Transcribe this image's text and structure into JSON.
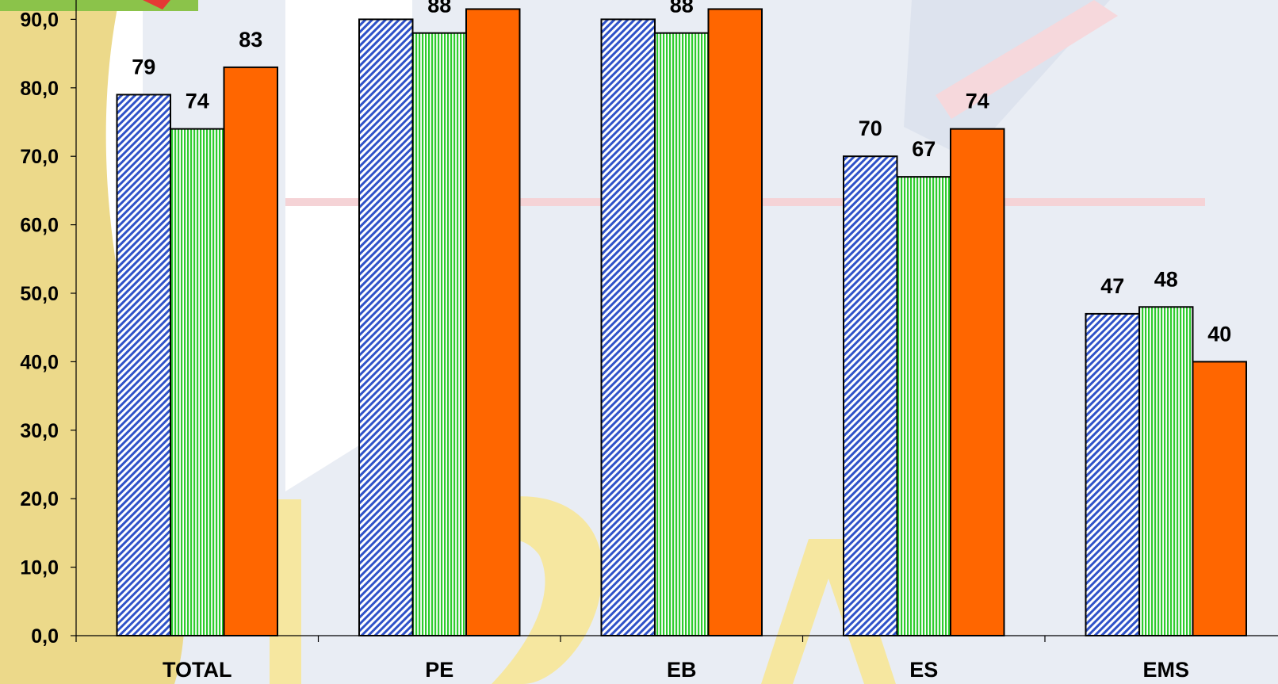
{
  "chart_data": {
    "type": "bar",
    "categories": [
      "TOTAL",
      "PE",
      "EB",
      "ES",
      "EMS"
    ],
    "series": [
      {
        "color": "#2f52c8",
        "pattern": "diagonal",
        "values": [
          79,
          90,
          90,
          70,
          47
        ]
      },
      {
        "color": "#2ecc2e",
        "pattern": "vertical",
        "values": [
          74,
          88,
          88,
          67,
          48
        ]
      },
      {
        "color": "#ff6600",
        "pattern": "solid",
        "values": [
          83,
          91.5,
          91.5,
          74,
          40
        ]
      }
    ],
    "ylim": [
      0,
      92.9
    ],
    "yticks": [
      {
        "value": 0,
        "label": "0,0"
      },
      {
        "value": 10,
        "label": "10,0"
      },
      {
        "value": 20,
        "label": "20,0"
      },
      {
        "value": 30,
        "label": "30,0"
      },
      {
        "value": 40,
        "label": "40,0"
      },
      {
        "value": 50,
        "label": "50,0"
      },
      {
        "value": 60,
        "label": "60,0"
      },
      {
        "value": 70,
        "label": "70,0"
      },
      {
        "value": 80,
        "label": "80,0"
      },
      {
        "value": 90,
        "label": "90,0"
      }
    ],
    "grid": false
  }
}
